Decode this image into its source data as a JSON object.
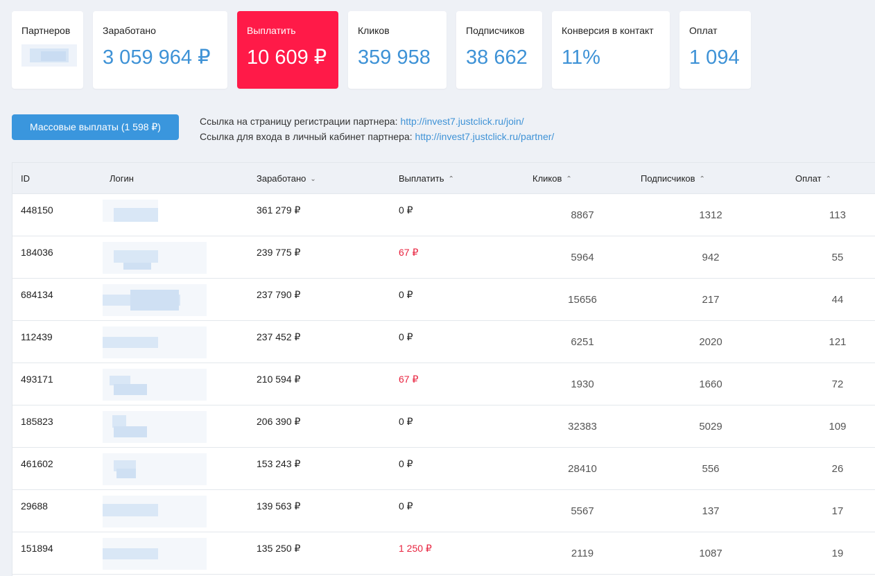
{
  "cards": [
    {
      "label": "Партнеров",
      "value": "",
      "type": "blurred"
    },
    {
      "label": "Заработано",
      "value": "3 059 964 ₽"
    },
    {
      "label": "Выплатить",
      "value": "10 609 ₽",
      "highlight": true
    },
    {
      "label": "Кликов",
      "value": "359 958"
    },
    {
      "label": "Подписчиков",
      "value": "38 662"
    },
    {
      "label": "Конверсия в контакт",
      "value": "11%"
    },
    {
      "label": "Оплат",
      "value": "1 094"
    }
  ],
  "actions": {
    "mass_payout_label": "Массовые выплаты (1 598 ₽)",
    "reg_link_text": "Ссылка на страницу регистрации партнера:",
    "reg_link_url": "http://invest7.justclick.ru/join/",
    "cabinet_link_text": "Ссылка для входа в личный кабинет партнера:",
    "cabinet_link_url": "http://invest7.justclick.ru/partner/"
  },
  "table": {
    "columns": {
      "id": "ID",
      "login": "Логин",
      "earned": "Заработано",
      "pay": "Выплатить",
      "clicks": "Кликов",
      "subscribers": "Подписчиков",
      "payments": "Оплат"
    },
    "sort_icons": {
      "earned": "sort-desc-icon",
      "pay": "sort-asc-icon",
      "clicks": "sort-asc-icon",
      "subscribers": "sort-asc-icon",
      "payments": "sort-asc-icon"
    },
    "rows": [
      {
        "id": "448150",
        "earned": "361 279 ₽",
        "pay": "0 ₽",
        "pay_red": false,
        "clicks": "8867",
        "subscribers": "1312",
        "payments": "113"
      },
      {
        "id": "184036",
        "earned": "239 775 ₽",
        "pay": "67 ₽",
        "pay_red": true,
        "clicks": "5964",
        "subscribers": "942",
        "payments": "55"
      },
      {
        "id": "684134",
        "earned": "237 790 ₽",
        "pay": "0 ₽",
        "pay_red": false,
        "clicks": "15656",
        "subscribers": "217",
        "payments": "44"
      },
      {
        "id": "112439",
        "earned": "237 452 ₽",
        "pay": "0 ₽",
        "pay_red": false,
        "clicks": "6251",
        "subscribers": "2020",
        "payments": "121"
      },
      {
        "id": "493171",
        "earned": "210 594 ₽",
        "pay": "67 ₽",
        "pay_red": true,
        "clicks": "1930",
        "subscribers": "1660",
        "payments": "72"
      },
      {
        "id": "185823",
        "earned": "206 390 ₽",
        "pay": "0 ₽",
        "pay_red": false,
        "clicks": "32383",
        "subscribers": "5029",
        "payments": "109"
      },
      {
        "id": "461602",
        "earned": "153 243 ₽",
        "pay": "0 ₽",
        "pay_red": false,
        "clicks": "28410",
        "subscribers": "556",
        "payments": "26"
      },
      {
        "id": "29688",
        "earned": "139 563 ₽",
        "pay": "0 ₽",
        "pay_red": false,
        "clicks": "5567",
        "subscribers": "137",
        "payments": "17"
      },
      {
        "id": "151894",
        "earned": "135 250 ₽",
        "pay": "1 250 ₽",
        "pay_red": true,
        "clicks": "2119",
        "subscribers": "1087",
        "payments": "19"
      }
    ]
  },
  "colors": {
    "accent_blue": "#3e92d6",
    "button_blue": "#3a96dd",
    "highlight_red": "#ff1a48",
    "pay_red": "#e8233f",
    "background": "#eef1f6"
  }
}
